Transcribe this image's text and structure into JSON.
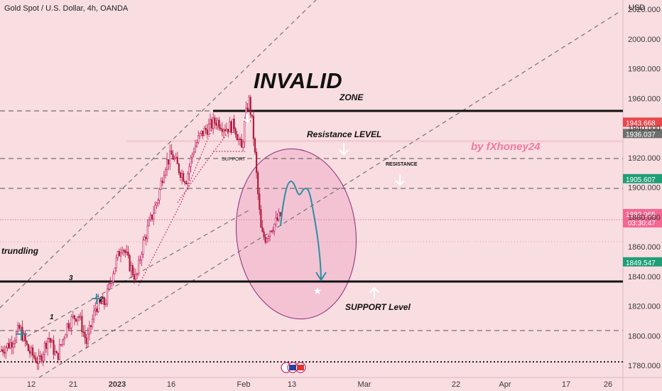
{
  "header": {
    "title": "Gold Spot / U.S. Dollar, 4h, OANDA",
    "currency": "USD"
  },
  "colors": {
    "background": "#f8dde1",
    "candle_up": "#c2185b",
    "candle_down": "#b01e3c",
    "accent_pink": "#f07aa0",
    "projection": "#2a8fa0",
    "ellipse_stroke": "#8b2a7a",
    "ellipse_fill": "#f2b9cf",
    "tag_red": "#e8474c",
    "tag_gray": "#6f6f6f",
    "tag_green": "#1f9e78",
    "tag_pink": "#f56692"
  },
  "annotations": {
    "invalid": "INVALID",
    "zone": "ZONE",
    "resistance_level": "Resistance LEVEL",
    "resistance_small": "RESISTANCE",
    "support_level": "SUPPORT Level",
    "watermark": "by fXhoney24",
    "trundling": "trundling",
    "wave_1": "1",
    "wave_2": "2",
    "wave_3": "3",
    "support_small": "SUPPORT"
  },
  "price_tags": [
    {
      "value": "1943.668",
      "kind": "red"
    },
    {
      "value": "1936.037",
      "kind": "gray"
    },
    {
      "value": "1905.607",
      "kind": "green"
    },
    {
      "value": "1882.065",
      "kind": "pink",
      "sub": "03:30:47"
    },
    {
      "value": "1849.547",
      "kind": "green"
    }
  ],
  "chart_data": {
    "type": "candlestick",
    "ylim": [
      1773,
      2032
    ],
    "y_ticks": [
      "2020.000",
      "2000.000",
      "1980.000",
      "1960.000",
      "1940.000",
      "1920.000",
      "1900.000",
      "1880.000",
      "1860.000",
      "1840.000",
      "1820.000",
      "1800.000",
      "1780.000"
    ],
    "x_ticks": [
      "12",
      "21",
      "2023",
      "16",
      "Feb",
      "13",
      "Mar",
      "22",
      "Apr",
      "17",
      "26"
    ],
    "horizontal_levels": [
      {
        "price": 1960,
        "style": "solid-thick",
        "from": "Jan 29"
      },
      {
        "price": 1960,
        "style": "dashed",
        "from": "start"
      },
      {
        "price": 1926,
        "style": "dashed"
      },
      {
        "price": 1905,
        "style": "dashed"
      },
      {
        "price": 1840,
        "style": "solid-thick"
      },
      {
        "price": 1805,
        "style": "dashed"
      },
      {
        "price": 1783,
        "style": "dotted"
      }
    ],
    "trend": "Rally from ~1780 (Dec) to ~1960 (early Feb), then drop to ~1862; projection up to ~1910 then down to 1840"
  }
}
